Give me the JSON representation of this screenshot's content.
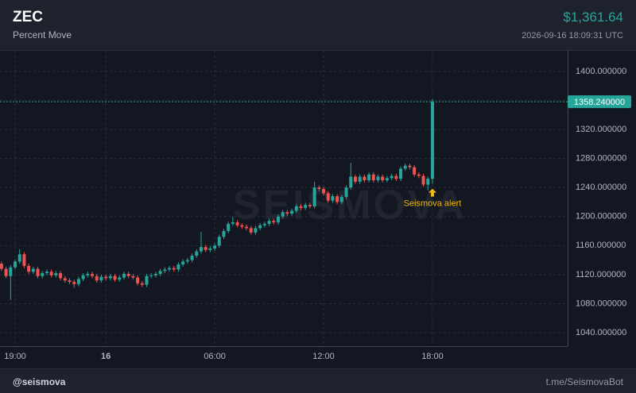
{
  "header": {
    "symbol": "ZEC",
    "subtitle": "Percent Move",
    "price": "$1,361.64",
    "timestamp": "2026-09-16 18:09:31 UTC"
  },
  "footer": {
    "handle": "@seismova",
    "link": "t.me/SeismovaBot"
  },
  "chart_data": {
    "type": "candlestick",
    "watermark": "SEISMOVA",
    "up_color": "#26a69a",
    "down_color": "#ef5350",
    "grid": true,
    "xlim": [
      "2026-09-15T18:10",
      "2026-09-17T01:27"
    ],
    "xticks": [
      {
        "value": "2026-09-15T19:00",
        "label": "19:00"
      },
      {
        "value": "2026-09-16T00:00",
        "label": "16"
      },
      {
        "value": "2026-09-16T06:00",
        "label": "06:00"
      },
      {
        "value": "2026-09-16T12:00",
        "label": "12:00"
      },
      {
        "value": "2026-09-16T18:00",
        "label": "18:00"
      }
    ],
    "ylim": [
      1021.4,
      1428.4
    ],
    "yticks": [
      {
        "value": 1040,
        "label": "1040.000000"
      },
      {
        "value": 1080,
        "label": "1080.000000"
      },
      {
        "value": 1120,
        "label": "1120.000000"
      },
      {
        "value": 1160,
        "label": "1160.000000"
      },
      {
        "value": 1200,
        "label": "1200.000000"
      },
      {
        "value": 1240,
        "label": "1240.000000"
      },
      {
        "value": 1280,
        "label": "1280.000000"
      },
      {
        "value": 1320,
        "label": "1320.000000"
      },
      {
        "value": 1360,
        "label": "1360.000000"
      },
      {
        "value": 1400,
        "label": "1400.000000"
      }
    ],
    "last_price": {
      "value": 1358.24,
      "label": "1358.240000"
    },
    "annotation": {
      "text": "Seismova alert",
      "x": "2026-09-16T18:00"
    },
    "x": [
      "2026-09-15T18:15",
      "2026-09-15T18:30",
      "2026-09-15T18:45",
      "2026-09-15T19:00",
      "2026-09-15T19:15",
      "2026-09-15T19:30",
      "2026-09-15T19:45",
      "2026-09-15T20:00",
      "2026-09-15T20:15",
      "2026-09-15T20:30",
      "2026-09-15T20:45",
      "2026-09-15T21:00",
      "2026-09-15T21:15",
      "2026-09-15T21:30",
      "2026-09-15T21:45",
      "2026-09-15T22:00",
      "2026-09-15T22:15",
      "2026-09-15T22:30",
      "2026-09-15T22:45",
      "2026-09-15T23:00",
      "2026-09-15T23:15",
      "2026-09-15T23:30",
      "2026-09-15T23:45",
      "2026-09-16T00:00",
      "2026-09-16T00:15",
      "2026-09-16T00:30",
      "2026-09-16T00:45",
      "2026-09-16T01:00",
      "2026-09-16T01:15",
      "2026-09-16T01:30",
      "2026-09-16T01:45",
      "2026-09-16T02:00",
      "2026-09-16T02:15",
      "2026-09-16T02:30",
      "2026-09-16T02:45",
      "2026-09-16T03:00",
      "2026-09-16T03:15",
      "2026-09-16T03:30",
      "2026-09-16T03:45",
      "2026-09-16T04:00",
      "2026-09-16T04:15",
      "2026-09-16T04:30",
      "2026-09-16T04:45",
      "2026-09-16T05:00",
      "2026-09-16T05:15",
      "2026-09-16T05:30",
      "2026-09-16T05:45",
      "2026-09-16T06:00",
      "2026-09-16T06:15",
      "2026-09-16T06:30",
      "2026-09-16T06:45",
      "2026-09-16T07:00",
      "2026-09-16T07:15",
      "2026-09-16T07:30",
      "2026-09-16T07:45",
      "2026-09-16T08:00",
      "2026-09-16T08:15",
      "2026-09-16T08:30",
      "2026-09-16T08:45",
      "2026-09-16T09:00",
      "2026-09-16T09:15",
      "2026-09-16T09:30",
      "2026-09-16T09:45",
      "2026-09-16T10:00",
      "2026-09-16T10:15",
      "2026-09-16T10:30",
      "2026-09-16T10:45",
      "2026-09-16T11:00",
      "2026-09-16T11:15",
      "2026-09-16T11:30",
      "2026-09-16T11:45",
      "2026-09-16T12:00",
      "2026-09-16T12:15",
      "2026-09-16T12:30",
      "2026-09-16T12:45",
      "2026-09-16T13:00",
      "2026-09-16T13:15",
      "2026-09-16T13:30",
      "2026-09-16T13:45",
      "2026-09-16T14:00",
      "2026-09-16T14:15",
      "2026-09-16T14:30",
      "2026-09-16T14:45",
      "2026-09-16T15:00",
      "2026-09-16T15:15",
      "2026-09-16T15:30",
      "2026-09-16T15:45",
      "2026-09-16T16:00",
      "2026-09-16T16:15",
      "2026-09-16T16:30",
      "2026-09-16T16:45",
      "2026-09-16T17:00",
      "2026-09-16T17:15",
      "2026-09-16T17:30",
      "2026-09-16T17:45",
      "2026-09-16T18:00"
    ],
    "open": [
      1135,
      1128,
      1118,
      1130,
      1138,
      1148,
      1132,
      1124,
      1128,
      1118,
      1122,
      1124,
      1119,
      1122,
      1115,
      1112,
      1110,
      1107,
      1114,
      1119,
      1121,
      1118,
      1112,
      1117,
      1115,
      1118,
      1113,
      1116,
      1121,
      1118,
      1116,
      1108,
      1106,
      1118,
      1119,
      1121,
      1125,
      1127,
      1129,
      1127,
      1134,
      1138,
      1140,
      1146,
      1152,
      1158,
      1154,
      1156,
      1160,
      1172,
      1180,
      1190,
      1192,
      1188,
      1186,
      1184,
      1178,
      1184,
      1188,
      1190,
      1194,
      1192,
      1200,
      1206,
      1204,
      1208,
      1214,
      1212,
      1216,
      1214,
      1240,
      1238,
      1232,
      1222,
      1228,
      1220,
      1227,
      1240,
      1255,
      1248,
      1255,
      1250,
      1258,
      1250,
      1255,
      1250,
      1253,
      1256,
      1252,
      1266,
      1270,
      1268,
      1258,
      1256,
      1244,
      1252
    ],
    "high": [
      1138,
      1131,
      1133,
      1141,
      1155,
      1151,
      1135,
      1131,
      1131,
      1125,
      1127,
      1127,
      1125,
      1125,
      1118,
      1115,
      1113,
      1117,
      1122,
      1124,
      1124,
      1121,
      1120,
      1120,
      1121,
      1121,
      1119,
      1124,
      1124,
      1121,
      1119,
      1111,
      1121,
      1122,
      1124,
      1128,
      1130,
      1132,
      1132,
      1137,
      1141,
      1143,
      1149,
      1155,
      1179,
      1161,
      1159,
      1163,
      1175,
      1183,
      1193,
      1200,
      1195,
      1191,
      1189,
      1187,
      1187,
      1191,
      1193,
      1197,
      1197,
      1203,
      1209,
      1209,
      1211,
      1217,
      1217,
      1219,
      1219,
      1248,
      1243,
      1241,
      1235,
      1231,
      1231,
      1230,
      1243,
      1274,
      1258,
      1258,
      1258,
      1261,
      1261,
      1258,
      1258,
      1256,
      1259,
      1259,
      1269,
      1273,
      1273,
      1271,
      1261,
      1259,
      1255,
      1362
    ],
    "low": [
      1125,
      1115,
      1085,
      1127,
      1135,
      1129,
      1121,
      1121,
      1115,
      1115,
      1119,
      1116,
      1116,
      1112,
      1109,
      1107,
      1102,
      1104,
      1111,
      1116,
      1115,
      1109,
      1109,
      1112,
      1112,
      1110,
      1110,
      1113,
      1115,
      1113,
      1105,
      1103,
      1103,
      1115,
      1116,
      1118,
      1122,
      1124,
      1124,
      1124,
      1131,
      1135,
      1137,
      1143,
      1149,
      1151,
      1151,
      1153,
      1157,
      1169,
      1177,
      1187,
      1185,
      1183,
      1181,
      1175,
      1175,
      1181,
      1185,
      1187,
      1189,
      1189,
      1197,
      1201,
      1201,
      1205,
      1209,
      1209,
      1211,
      1211,
      1235,
      1229,
      1219,
      1219,
      1217,
      1217,
      1224,
      1237,
      1245,
      1245,
      1247,
      1247,
      1247,
      1247,
      1247,
      1247,
      1250,
      1249,
      1249,
      1263,
      1265,
      1255,
      1253,
      1241,
      1236,
      1245
    ],
    "close": [
      1128,
      1118,
      1130,
      1138,
      1148,
      1132,
      1124,
      1128,
      1118,
      1122,
      1124,
      1119,
      1122,
      1115,
      1112,
      1110,
      1107,
      1114,
      1119,
      1121,
      1118,
      1112,
      1117,
      1115,
      1118,
      1113,
      1116,
      1121,
      1118,
      1116,
      1108,
      1106,
      1118,
      1119,
      1121,
      1125,
      1127,
      1129,
      1127,
      1134,
      1138,
      1140,
      1146,
      1152,
      1158,
      1154,
      1156,
      1160,
      1172,
      1180,
      1190,
      1192,
      1188,
      1186,
      1184,
      1178,
      1184,
      1188,
      1190,
      1194,
      1192,
      1200,
      1206,
      1204,
      1208,
      1214,
      1212,
      1216,
      1214,
      1240,
      1238,
      1232,
      1222,
      1228,
      1220,
      1227,
      1240,
      1255,
      1248,
      1255,
      1250,
      1258,
      1250,
      1255,
      1250,
      1253,
      1256,
      1252,
      1266,
      1270,
      1268,
      1258,
      1256,
      1244,
      1252,
      1358.24
    ]
  }
}
